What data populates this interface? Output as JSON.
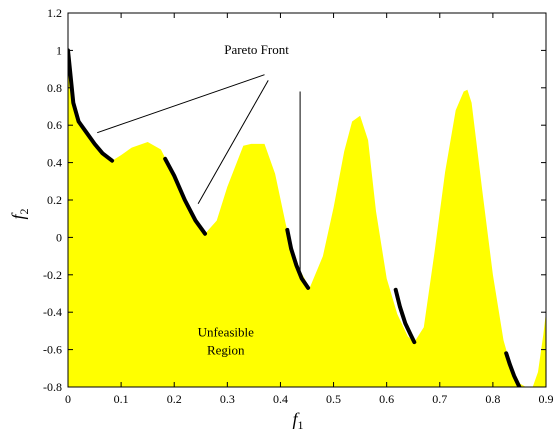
{
  "chart_data": {
    "type": "area",
    "xlabel": "f",
    "xlabel_sub": "1",
    "ylabel": "f",
    "ylabel_sub": "2",
    "xlim": [
      0,
      0.9
    ],
    "ylim": [
      -0.8,
      1.2
    ],
    "xticks": [
      "0",
      "0.1",
      "0.2",
      "0.3",
      "0.4",
      "0.5",
      "0.6",
      "0.7",
      "0.8",
      "0.9"
    ],
    "yticks": [
      "-0.8",
      "-0.6",
      "-0.4",
      "-0.2",
      "0",
      "0.2",
      "0.4",
      "0.6",
      "0.8",
      "1",
      "1.2"
    ],
    "grid": false,
    "region_color": "#ffff00",
    "front_color": "#000000",
    "boundary": {
      "x": [
        0,
        0.005,
        0.01,
        0.02,
        0.04,
        0.06,
        0.083,
        0.1,
        0.12,
        0.15,
        0.175,
        0.2,
        0.23,
        0.258,
        0.28,
        0.3,
        0.33,
        0.345,
        0.37,
        0.39,
        0.41,
        0.43,
        0.455,
        0.48,
        0.5,
        0.52,
        0.535,
        0.55,
        0.565,
        0.58,
        0.6,
        0.62,
        0.64,
        0.652,
        0.67,
        0.69,
        0.71,
        0.73,
        0.745,
        0.752,
        0.76,
        0.78,
        0.8,
        0.82,
        0.835,
        0.85,
        0.862,
        0.875,
        0.885,
        0.895,
        0.9
      ],
      "y": [
        1.0,
        0.85,
        0.72,
        0.62,
        0.54,
        0.47,
        0.41,
        0.44,
        0.48,
        0.51,
        0.47,
        0.33,
        0.14,
        0.02,
        0.09,
        0.27,
        0.49,
        0.5,
        0.5,
        0.34,
        0.07,
        -0.14,
        -0.27,
        -0.1,
        0.16,
        0.46,
        0.62,
        0.65,
        0.52,
        0.14,
        -0.22,
        -0.41,
        -0.53,
        -0.56,
        -0.48,
        -0.08,
        0.35,
        0.68,
        0.78,
        0.79,
        0.72,
        0.25,
        -0.2,
        -0.55,
        -0.7,
        -0.78,
        -0.8,
        -0.8,
        -0.72,
        -0.52,
        -0.4
      ]
    },
    "pareto_segments": [
      {
        "x": [
          0.0,
          0.01,
          0.02,
          0.035,
          0.05,
          0.065,
          0.083
        ],
        "y": [
          1.0,
          0.72,
          0.62,
          0.56,
          0.5,
          0.45,
          0.41
        ]
      },
      {
        "x": [
          0.183,
          0.2,
          0.22,
          0.24,
          0.258
        ],
        "y": [
          0.42,
          0.33,
          0.2,
          0.09,
          0.02
        ]
      },
      {
        "x": [
          0.413,
          0.42,
          0.43,
          0.44,
          0.452
        ],
        "y": [
          0.04,
          -0.06,
          -0.15,
          -0.22,
          -0.27
        ]
      },
      {
        "x": [
          0.617,
          0.625,
          0.635,
          0.645,
          0.652
        ],
        "y": [
          -0.28,
          -0.37,
          -0.46,
          -0.52,
          -0.56
        ]
      },
      {
        "x": [
          0.825,
          0.832,
          0.84,
          0.85
        ],
        "y": [
          -0.62,
          -0.68,
          -0.74,
          -0.8
        ]
      }
    ],
    "annotations": [
      {
        "text": "Pareto Front",
        "x": 0.355,
        "y": 0.98
      },
      {
        "text_lines": [
          "Unfeasible",
          "Region"
        ],
        "x": 0.297,
        "y": -0.53
      }
    ],
    "annotation_lines": [
      {
        "x1": 0.37,
        "y1": 0.87,
        "x2": 0.055,
        "y2": 0.56
      },
      {
        "x1": 0.377,
        "y1": 0.84,
        "x2": 0.245,
        "y2": 0.18
      },
      {
        "x1": 0.437,
        "y1": 0.78,
        "x2": 0.437,
        "y2": -0.18
      }
    ]
  }
}
